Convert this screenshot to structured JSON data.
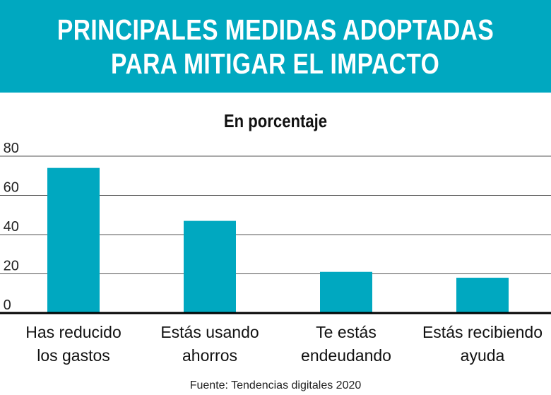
{
  "title_lines": [
    "PRINCIPALES MEDIDAS ADOPTADAS",
    "PARA MITIGAR EL IMPACTO"
  ],
  "source": "Fuente: Tendencias digitales 2020",
  "colors": {
    "banner": "#00a8c0",
    "bar": "#00a8c0"
  },
  "chart_data": {
    "type": "bar",
    "title": "PRINCIPALES MEDIDAS ADOPTADAS PARA MITIGAR EL IMPACTO",
    "subtitle": "En porcentaje",
    "categories": [
      [
        "Has reducido",
        "los gastos"
      ],
      [
        "Estás usando",
        "ahorros"
      ],
      [
        "Te estás",
        "endeudando"
      ],
      [
        "Estás recibiendo",
        "ayuda"
      ]
    ],
    "values": [
      74,
      47,
      21,
      18
    ],
    "ylim": [
      0,
      80
    ],
    "yticks": [
      "0",
      "20",
      "40",
      "60",
      "80"
    ],
    "grid": true
  }
}
